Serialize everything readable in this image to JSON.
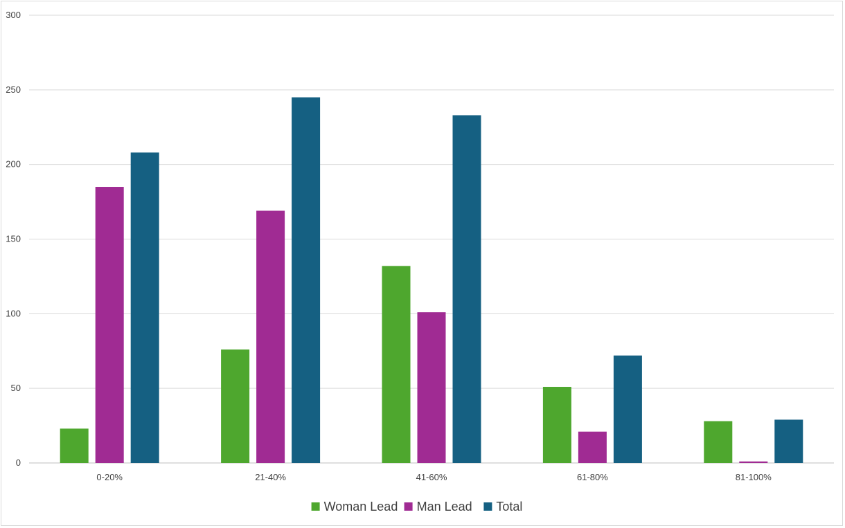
{
  "chart_data": {
    "type": "bar",
    "title": "",
    "xlabel": "",
    "ylabel": "",
    "categories": [
      "0-20%",
      "21-40%",
      "41-60%",
      "61-80%",
      "81-100%"
    ],
    "series": [
      {
        "name": "Woman Lead",
        "color": "#4ea72e",
        "values": [
          23,
          76,
          132,
          51,
          28
        ]
      },
      {
        "name": "Man Lead",
        "color": "#a02b93",
        "values": [
          185,
          169,
          101,
          21,
          1
        ]
      },
      {
        "name": "Total",
        "color": "#156082",
        "values": [
          208,
          245,
          233,
          72,
          29
        ]
      }
    ],
    "ylim": [
      0,
      300
    ],
    "yticks": [
      "0",
      "50",
      "100",
      "150",
      "200",
      "250",
      "300"
    ],
    "grid": true,
    "legend_position": "bottom"
  }
}
